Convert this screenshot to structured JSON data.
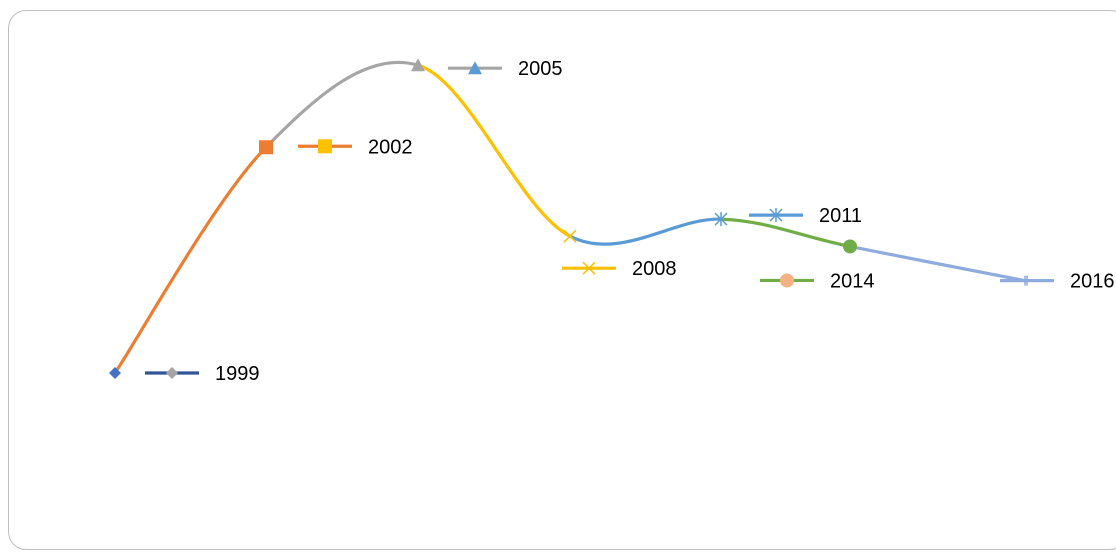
{
  "chart_data": {
    "type": "line",
    "title": "",
    "xlabel": "",
    "ylabel": "",
    "grid": false,
    "series": [
      {
        "name": "1999",
        "year": 1999,
        "color": "#4472c4",
        "marker": "diamond",
        "line_color": "#ed7d31",
        "legend_line_color": "#2e5597",
        "legend_marker_color": "#a5a5a5",
        "legend_marker": "diamond"
      },
      {
        "name": "2002",
        "year": 2002,
        "color": "#ed7d31",
        "marker": "square",
        "line_color": "#a5a5a5",
        "legend_line_color": "#ed7d31",
        "legend_marker_color": "#ffc000",
        "legend_marker": "square"
      },
      {
        "name": "2005",
        "year": 2005,
        "color": "#a5a5a5",
        "marker": "triangle",
        "line_color": "#ffc000",
        "legend_line_color": "#a5a5a5",
        "legend_marker_color": "#5b9bd5",
        "legend_marker": "triangle"
      },
      {
        "name": "2008",
        "year": 2008,
        "color": "#ffc000",
        "marker": "x",
        "line_color": "#5b9bd5",
        "legend_line_color": "#ffc000",
        "legend_marker_color": "#ffc000",
        "legend_marker": "x"
      },
      {
        "name": "2011",
        "year": 2011,
        "color": "#5b9bd5",
        "marker": "star",
        "line_color": "#70ad47",
        "legend_line_color": "#5b9bd5",
        "legend_marker_color": "#5b9bd5",
        "legend_marker": "star"
      },
      {
        "name": "2014",
        "year": 2014,
        "color": "#70ad47",
        "marker": "circle",
        "line_color": "#8faadc",
        "legend_line_color": "#70ad47",
        "legend_marker_color": "#f4b183",
        "legend_marker": "circle"
      },
      {
        "name": "2016",
        "year": 2016,
        "color": "#8faadc",
        "marker": "plus",
        "line_color": null,
        "legend_line_color": "#8faadc",
        "legend_marker_color": "#8faadc",
        "legend_marker": "plus"
      }
    ],
    "values": [
      1.0,
      7.6,
      10.0,
      5.0,
      5.5,
      4.7,
      3.7
    ]
  }
}
